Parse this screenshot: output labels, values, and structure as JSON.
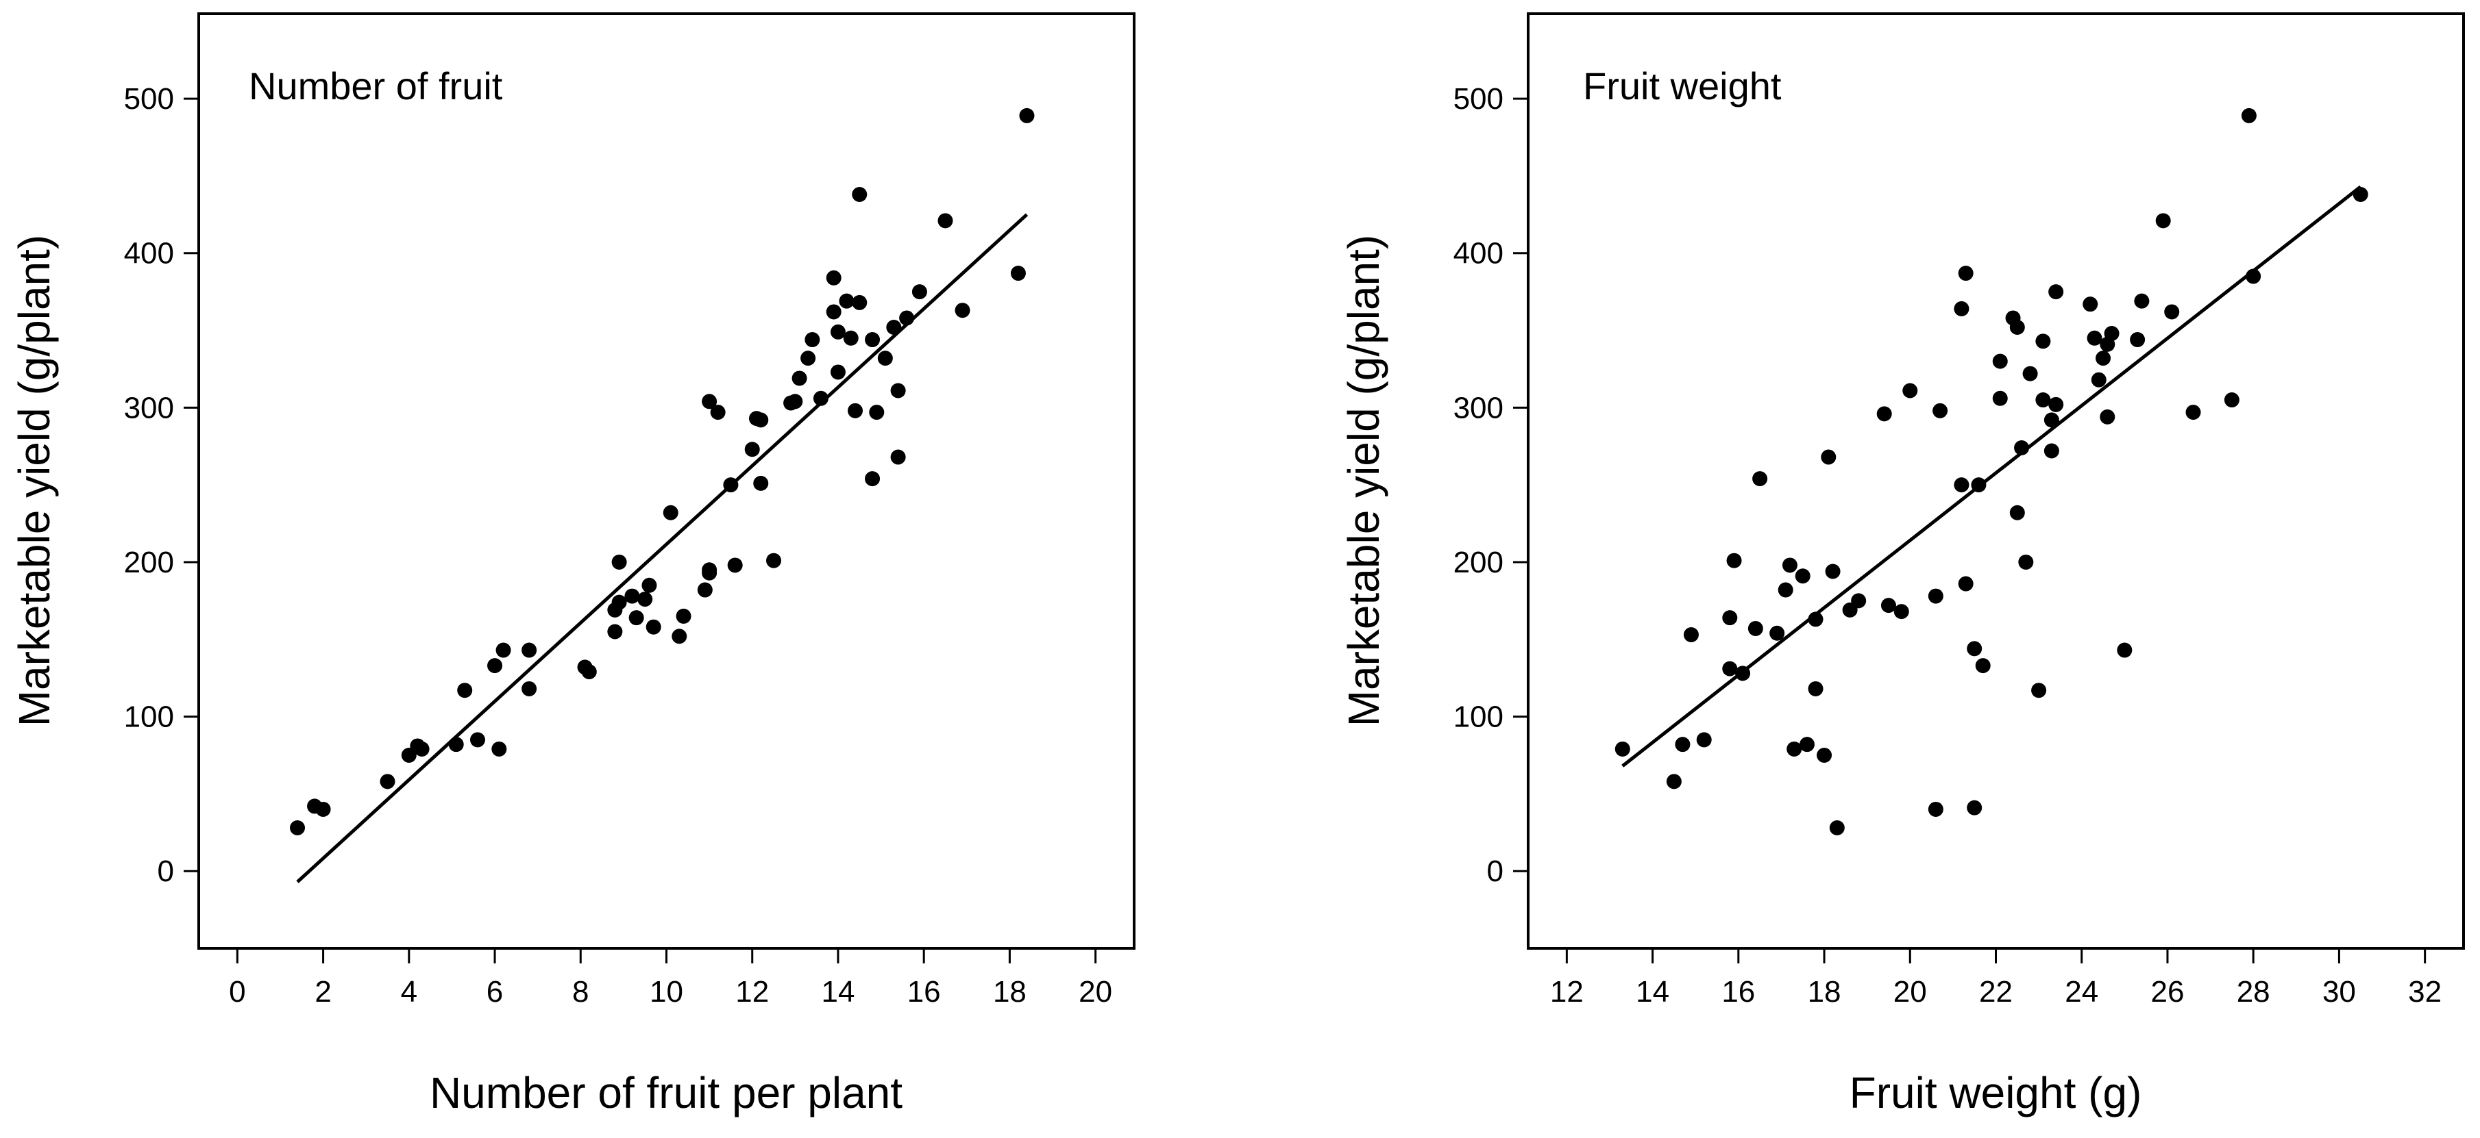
{
  "chart_data": [
    {
      "type": "scatter",
      "title": "Number of fruit",
      "xlabel": "Number of fruit per plant",
      "ylabel": "Marketable yield (g/plant)",
      "xlim": [
        -0.9,
        20.9
      ],
      "ylim": [
        -50,
        555
      ],
      "xticks": [
        0,
        2,
        4,
        6,
        8,
        10,
        12,
        14,
        16,
        18,
        20
      ],
      "yticks": [
        0,
        100,
        200,
        300,
        400,
        500
      ],
      "grid": false,
      "series": [
        {
          "name": "observations",
          "points": [
            [
              1.4,
              28
            ],
            [
              1.8,
              42
            ],
            [
              2.0,
              40
            ],
            [
              3.5,
              58
            ],
            [
              4.0,
              75
            ],
            [
              4.2,
              81
            ],
            [
              4.3,
              79
            ],
            [
              5.1,
              82
            ],
            [
              5.3,
              117
            ],
            [
              5.6,
              85
            ],
            [
              6.0,
              133
            ],
            [
              6.1,
              79
            ],
            [
              6.2,
              143
            ],
            [
              6.8,
              143
            ],
            [
              6.8,
              118
            ],
            [
              8.1,
              132
            ],
            [
              8.2,
              129
            ],
            [
              8.8,
              169
            ],
            [
              8.8,
              155
            ],
            [
              8.9,
              200
            ],
            [
              8.9,
              174
            ],
            [
              9.2,
              178
            ],
            [
              9.3,
              164
            ],
            [
              9.5,
              176
            ],
            [
              9.6,
              185
            ],
            [
              9.7,
              158
            ],
            [
              10.1,
              232
            ],
            [
              10.3,
              152
            ],
            [
              10.4,
              165
            ],
            [
              10.9,
              182
            ],
            [
              11.0,
              193
            ],
            [
              11.0,
              195
            ],
            [
              11.0,
              304
            ],
            [
              11.2,
              297
            ],
            [
              11.5,
              250
            ],
            [
              11.6,
              198
            ],
            [
              12.0,
              273
            ],
            [
              12.1,
              293
            ],
            [
              12.2,
              292
            ],
            [
              12.2,
              251
            ],
            [
              12.5,
              201
            ],
            [
              12.9,
              303
            ],
            [
              13.0,
              304
            ],
            [
              13.1,
              319
            ],
            [
              13.3,
              332
            ],
            [
              13.4,
              344
            ],
            [
              13.6,
              306
            ],
            [
              13.9,
              384
            ],
            [
              13.9,
              362
            ],
            [
              14.0,
              349
            ],
            [
              14.0,
              323
            ],
            [
              14.2,
              369
            ],
            [
              14.3,
              345
            ],
            [
              14.4,
              298
            ],
            [
              14.5,
              438
            ],
            [
              14.5,
              368
            ],
            [
              14.8,
              254
            ],
            [
              14.8,
              344
            ],
            [
              14.9,
              297
            ],
            [
              15.1,
              332
            ],
            [
              15.3,
              352
            ],
            [
              15.4,
              311
            ],
            [
              15.4,
              268
            ],
            [
              15.6,
              358
            ],
            [
              15.9,
              375
            ],
            [
              16.5,
              421
            ],
            [
              16.9,
              363
            ],
            [
              18.2,
              387
            ],
            [
              18.4,
              489
            ]
          ]
        },
        {
          "name": "fit",
          "line": [
            [
              1.4,
              -7
            ],
            [
              18.4,
              425
            ]
          ]
        }
      ]
    },
    {
      "type": "scatter",
      "title": "Fruit weight",
      "xlabel": "Fruit weight (g)",
      "ylabel": "Marketable yield (g/plant)",
      "xlim": [
        11.1,
        32.9
      ],
      "ylim": [
        -50,
        555
      ],
      "xticks": [
        12,
        14,
        16,
        18,
        20,
        22,
        24,
        26,
        28,
        30,
        32
      ],
      "yticks": [
        0,
        100,
        200,
        300,
        400,
        500
      ],
      "grid": false,
      "series": [
        {
          "name": "observations",
          "points": [
            [
              13.3,
              79
            ],
            [
              14.5,
              58
            ],
            [
              14.7,
              82
            ],
            [
              14.9,
              153
            ],
            [
              15.2,
              85
            ],
            [
              15.8,
              131
            ],
            [
              15.8,
              164
            ],
            [
              15.9,
              201
            ],
            [
              16.1,
              128
            ],
            [
              16.4,
              157
            ],
            [
              16.5,
              254
            ],
            [
              16.9,
              154
            ],
            [
              17.1,
              182
            ],
            [
              17.2,
              198
            ],
            [
              17.3,
              79
            ],
            [
              17.5,
              191
            ],
            [
              17.6,
              82
            ],
            [
              17.8,
              118
            ],
            [
              17.8,
              163
            ],
            [
              18.0,
              75
            ],
            [
              18.1,
              268
            ],
            [
              18.2,
              194
            ],
            [
              18.3,
              28
            ],
            [
              18.6,
              169
            ],
            [
              18.8,
              175
            ],
            [
              19.4,
              296
            ],
            [
              19.5,
              172
            ],
            [
              19.8,
              168
            ],
            [
              20.0,
              311
            ],
            [
              20.6,
              40
            ],
            [
              20.6,
              178
            ],
            [
              20.7,
              298
            ],
            [
              21.2,
              250
            ],
            [
              21.2,
              364
            ],
            [
              21.3,
              387
            ],
            [
              21.3,
              186
            ],
            [
              21.5,
              41
            ],
            [
              21.5,
              144
            ],
            [
              21.6,
              250
            ],
            [
              21.7,
              133
            ],
            [
              22.1,
              330
            ],
            [
              22.1,
              306
            ],
            [
              22.4,
              358
            ],
            [
              22.5,
              352
            ],
            [
              22.5,
              232
            ],
            [
              22.6,
              274
            ],
            [
              22.7,
              200
            ],
            [
              22.8,
              322
            ],
            [
              23.0,
              117
            ],
            [
              23.1,
              343
            ],
            [
              23.1,
              305
            ],
            [
              23.3,
              272
            ],
            [
              23.3,
              292
            ],
            [
              23.4,
              375
            ],
            [
              23.4,
              302
            ],
            [
              24.2,
              367
            ],
            [
              24.3,
              345
            ],
            [
              24.4,
              318
            ],
            [
              24.5,
              332
            ],
            [
              24.6,
              294
            ],
            [
              24.6,
              341
            ],
            [
              24.7,
              348
            ],
            [
              25.0,
              143
            ],
            [
              25.3,
              344
            ],
            [
              25.4,
              369
            ],
            [
              26.1,
              362
            ],
            [
              26.6,
              297
            ],
            [
              25.9,
              421
            ],
            [
              27.5,
              305
            ],
            [
              27.9,
              489
            ],
            [
              28.0,
              385
            ],
            [
              30.5,
              438
            ]
          ]
        },
        {
          "name": "fit",
          "line": [
            [
              13.3,
              68
            ],
            [
              30.5,
              443
            ]
          ]
        }
      ]
    }
  ]
}
